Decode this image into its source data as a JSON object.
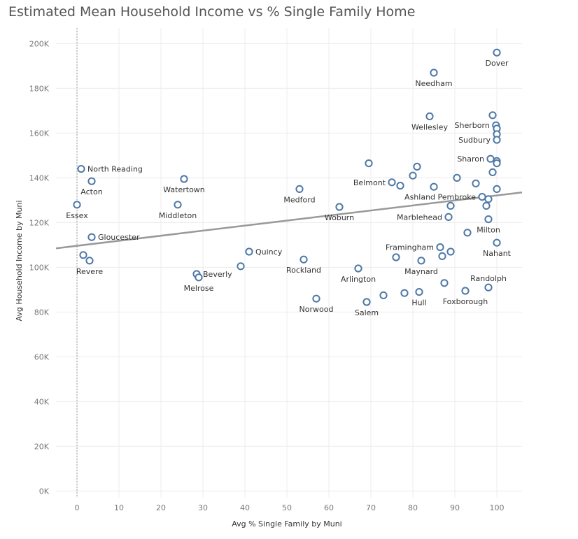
{
  "chart_data": {
    "type": "scatter",
    "title": "Estimated Mean Household Income vs % Single Family Home",
    "xlabel": "Avg % Single Family by Muni",
    "ylabel": "Avg Household Income by Muni",
    "xlim": [
      -5,
      106
    ],
    "ylim": [
      -3000,
      207000
    ],
    "x_ticks": [
      0,
      10,
      20,
      30,
      40,
      50,
      60,
      70,
      80,
      90,
      100
    ],
    "x_tick_labels": [
      "0",
      "10",
      "20",
      "30",
      "40",
      "50",
      "60",
      "70",
      "80",
      "90",
      "100"
    ],
    "y_ticks": [
      0,
      20000,
      40000,
      60000,
      80000,
      100000,
      120000,
      140000,
      160000,
      180000,
      200000
    ],
    "y_tick_labels": [
      "0K",
      "20K",
      "40K",
      "60K",
      "80K",
      "100K",
      "120K",
      "140K",
      "160K",
      "180K",
      "200K"
    ],
    "grid": true,
    "marker_color": "#4e79a7",
    "trend_color": "#999999",
    "trend_line": {
      "x": [
        -5,
        106
      ],
      "y": [
        108500,
        133500
      ]
    },
    "points": [
      {
        "x": 100,
        "y": 196000,
        "label": "Dover",
        "pos": "below"
      },
      {
        "x": 85,
        "y": 187000,
        "label": "Needham",
        "pos": "below"
      },
      {
        "x": 84,
        "y": 167500,
        "label": "Wellesley",
        "pos": "below"
      },
      {
        "x": 99,
        "y": 168000,
        "label": "",
        "pos": ""
      },
      {
        "x": 99.8,
        "y": 163500,
        "label": "Sherborn",
        "pos": "left"
      },
      {
        "x": 100,
        "y": 162000,
        "label": "",
        "pos": ""
      },
      {
        "x": 100,
        "y": 159500,
        "label": "",
        "pos": ""
      },
      {
        "x": 100,
        "y": 157000,
        "label": "Sudbury",
        "pos": "left"
      },
      {
        "x": 98.5,
        "y": 148500,
        "label": "Sharon",
        "pos": "left"
      },
      {
        "x": 100,
        "y": 147500,
        "label": "",
        "pos": ""
      },
      {
        "x": 100,
        "y": 146500,
        "label": "",
        "pos": ""
      },
      {
        "x": 69.5,
        "y": 146500,
        "label": "",
        "pos": ""
      },
      {
        "x": 81,
        "y": 145000,
        "label": "",
        "pos": ""
      },
      {
        "x": 99,
        "y": 142500,
        "label": "",
        "pos": ""
      },
      {
        "x": 80,
        "y": 141000,
        "label": "",
        "pos": ""
      },
      {
        "x": 90.5,
        "y": 140000,
        "label": "",
        "pos": ""
      },
      {
        "x": 75,
        "y": 138000,
        "label": "Belmont",
        "pos": "left"
      },
      {
        "x": 77,
        "y": 136500,
        "label": "",
        "pos": ""
      },
      {
        "x": 95,
        "y": 137500,
        "label": "",
        "pos": ""
      },
      {
        "x": 85,
        "y": 136000,
        "label": "",
        "pos": ""
      },
      {
        "x": 100,
        "y": 135000,
        "label": "",
        "pos": ""
      },
      {
        "x": 96.5,
        "y": 131500,
        "label": "Ashland Pembroke",
        "pos": "left"
      },
      {
        "x": 98,
        "y": 130500,
        "label": "",
        "pos": ""
      },
      {
        "x": 89,
        "y": 127500,
        "label": "",
        "pos": ""
      },
      {
        "x": 97.5,
        "y": 127500,
        "label": "",
        "pos": ""
      },
      {
        "x": 88.5,
        "y": 122500,
        "label": "Marblehead",
        "pos": "left"
      },
      {
        "x": 98,
        "y": 121500,
        "label": "Milton",
        "pos": "below"
      },
      {
        "x": 93,
        "y": 115500,
        "label": "",
        "pos": ""
      },
      {
        "x": 100,
        "y": 111000,
        "label": "Nahant",
        "pos": "below"
      },
      {
        "x": 86.5,
        "y": 109000,
        "label": "Framingham",
        "pos": "left"
      },
      {
        "x": 89,
        "y": 107000,
        "label": "",
        "pos": ""
      },
      {
        "x": 87,
        "y": 105000,
        "label": "",
        "pos": ""
      },
      {
        "x": 76,
        "y": 104500,
        "label": "",
        "pos": ""
      },
      {
        "x": 82,
        "y": 103000,
        "label": "Maynard",
        "pos": "below"
      },
      {
        "x": 67,
        "y": 99500,
        "label": "Arlington",
        "pos": "below"
      },
      {
        "x": 98,
        "y": 91000,
        "label": "Randolph",
        "pos": "above"
      },
      {
        "x": 87.5,
        "y": 93000,
        "label": "",
        "pos": ""
      },
      {
        "x": 92.5,
        "y": 89500,
        "label": "Foxborough",
        "pos": "below"
      },
      {
        "x": 81.5,
        "y": 89000,
        "label": "Hull",
        "pos": "below"
      },
      {
        "x": 78,
        "y": 88500,
        "label": "",
        "pos": ""
      },
      {
        "x": 73,
        "y": 87500,
        "label": "",
        "pos": ""
      },
      {
        "x": 69,
        "y": 84500,
        "label": "Salem",
        "pos": "below"
      },
      {
        "x": 57,
        "y": 86000,
        "label": "Norwood",
        "pos": "below"
      },
      {
        "x": 54,
        "y": 103500,
        "label": "Rockland",
        "pos": "below"
      },
      {
        "x": 62.5,
        "y": 127000,
        "label": "Woburn",
        "pos": "below"
      },
      {
        "x": 53,
        "y": 135000,
        "label": "Medford",
        "pos": "below"
      },
      {
        "x": 41,
        "y": 107000,
        "label": "Quincy",
        "pos": "right"
      },
      {
        "x": 39,
        "y": 100500,
        "label": "",
        "pos": ""
      },
      {
        "x": 28.5,
        "y": 97000,
        "label": "Beverly",
        "pos": "right"
      },
      {
        "x": 29,
        "y": 95500,
        "label": "Melrose",
        "pos": "below"
      },
      {
        "x": 25.5,
        "y": 139500,
        "label": "Watertown",
        "pos": "below"
      },
      {
        "x": 24,
        "y": 128000,
        "label": "Middleton",
        "pos": "below"
      },
      {
        "x": 1,
        "y": 144000,
        "label": "North Reading",
        "pos": "right"
      },
      {
        "x": 3.5,
        "y": 138500,
        "label": "Acton",
        "pos": "below"
      },
      {
        "x": 0,
        "y": 128000,
        "label": "Essex",
        "pos": "below"
      },
      {
        "x": 3.5,
        "y": 113500,
        "label": "Gloucester",
        "pos": "right"
      },
      {
        "x": 1.5,
        "y": 105500,
        "label": "",
        "pos": ""
      },
      {
        "x": 3,
        "y": 103000,
        "label": "Revere",
        "pos": "below"
      }
    ]
  }
}
